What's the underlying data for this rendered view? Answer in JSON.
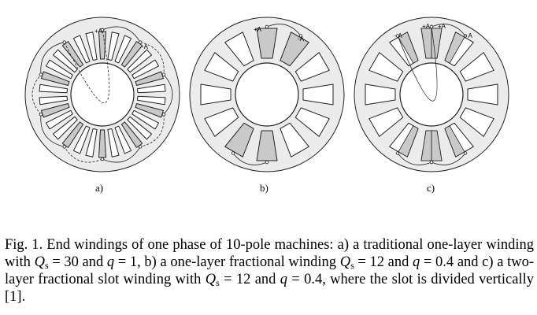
{
  "figure": {
    "panels": [
      {
        "id": "a",
        "label": "a)",
        "signs": [
          "+A",
          "-A"
        ]
      },
      {
        "id": "b",
        "label": "b)",
        "signs": [
          "+A",
          "-A"
        ]
      },
      {
        "id": "c",
        "label": "c)",
        "signs": [
          "- A",
          "+A",
          "+A",
          "- A"
        ]
      }
    ],
    "colors": {
      "fill_gray": "#c9c9c9",
      "stator_disk": "#ececec",
      "line": "#222222"
    }
  },
  "caption": {
    "prefix": "Fig. 1. End windings of one phase of 10-pole machines: a) a traditional one-layer winding with ",
    "qs1_var": "Q",
    "qs1_sub": "s",
    "p2": " = 30 and ",
    "q1_var": "q",
    "p3": " = 1, b) a one-layer fractional winding ",
    "qs2_var": "Q",
    "qs2_sub": "s",
    "p4": " = 12 and ",
    "q2_var": "q",
    "p5": " = 0.4 and c) a two-layer fractional slot winding with ",
    "qs3_var": "Q",
    "qs3_sub": "s",
    "p6": " = 12 and ",
    "q3_var": "q",
    "p7": " = 0.4, where the slot is divided vertically [1]."
  }
}
